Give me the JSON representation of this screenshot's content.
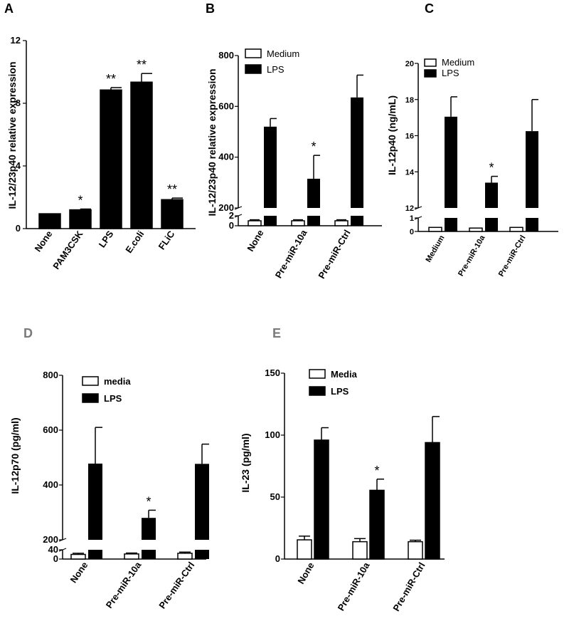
{
  "chart_data": [
    {
      "panel": "A",
      "type": "bar",
      "ylabel": "IL-12/23p40 relative expression",
      "categories": [
        "None",
        "PAM3CSK",
        "LPS",
        "E.coli",
        "FLiC"
      ],
      "series": [
        {
          "values": [
            0.95,
            1.2,
            8.85,
            9.35,
            1.85
          ],
          "errors": [
            0.03,
            0.05,
            0.15,
            0.55,
            0.1
          ],
          "color": "#000000"
        }
      ],
      "annotations": [
        "",
        "*",
        "**",
        "**",
        "**"
      ],
      "ylim": [
        0,
        12
      ],
      "yticks": [
        0,
        4,
        8,
        12
      ]
    },
    {
      "panel": "B",
      "type": "bar",
      "ylabel": "IL-12/23p40 relative expression",
      "categories": [
        "None",
        "Pre-miR-10a",
        "Pre-miR-Ctrl"
      ],
      "series": [
        {
          "name": "Medium",
          "values": [
            1,
            1,
            1
          ],
          "errors": [
            0.2,
            0.2,
            0.2
          ],
          "color": "#ffffff"
        },
        {
          "name": "LPS",
          "values": [
            520,
            315,
            635
          ],
          "errors": [
            32,
            92,
            88
          ],
          "color": "#000000"
        }
      ],
      "annotations": [
        "",
        "*",
        ""
      ],
      "yticks": [
        "0",
        "2",
        "200",
        "400",
        "600",
        "800"
      ],
      "axis_break": {
        "lower": [
          0,
          2
        ],
        "upper": [
          200,
          800
        ]
      },
      "legend": "top-left"
    },
    {
      "panel": "C",
      "type": "bar",
      "ylabel": "IL-12p40 (ng/mL)",
      "categories": [
        "Medium",
        "Pre-miR-10a",
        "Pre-miR-Ctrl"
      ],
      "series": [
        {
          "name": "Medium",
          "values": [
            0.3,
            0.25,
            0.3
          ],
          "errors": [
            0.02,
            0.02,
            0.02
          ],
          "color": "#ffffff"
        },
        {
          "name": "LPS",
          "values": [
            17.05,
            13.4,
            16.25
          ],
          "errors": [
            1.1,
            0.35,
            1.75
          ],
          "color": "#000000"
        }
      ],
      "annotations": [
        "",
        "*",
        ""
      ],
      "yticks": [
        "0",
        "1",
        "12",
        "14",
        "16",
        "18",
        "20"
      ],
      "axis_break": {
        "lower": [
          0,
          1
        ],
        "upper": [
          12,
          20
        ]
      },
      "legend": "top-left"
    },
    {
      "panel": "D",
      "type": "bar",
      "ylabel": "IL-12p70 (pg/ml)",
      "categories": [
        "None",
        "Pre-miR-10a",
        "Pre-miR-Ctrl"
      ],
      "series": [
        {
          "name": "media",
          "values": [
            20,
            22,
            25
          ],
          "errors": [
            5,
            4,
            5
          ],
          "color": "#ffffff"
        },
        {
          "name": "LPS",
          "values": [
            478,
            280,
            477
          ],
          "errors": [
            132,
            28,
            72
          ],
          "color": "#000000"
        }
      ],
      "annotations": [
        "",
        "*",
        ""
      ],
      "yticks": [
        "0",
        "40",
        "200",
        "400",
        "600",
        "800"
      ],
      "axis_break": {
        "lower": [
          0,
          40
        ],
        "upper": [
          200,
          800
        ]
      },
      "legend": "top-left"
    },
    {
      "panel": "E",
      "type": "bar",
      "ylabel": "IL-23 (pg/ml)",
      "categories": [
        "None",
        "Pre-miR-10a",
        "Pre-miR-Ctrl"
      ],
      "series": [
        {
          "name": "Media",
          "values": [
            15.5,
            14,
            14
          ],
          "errors": [
            3,
            2.5,
            1.2
          ],
          "color": "#ffffff"
        },
        {
          "name": "LPS",
          "values": [
            96,
            55.5,
            94
          ],
          "errors": [
            10,
            9,
            21
          ],
          "color": "#000000"
        }
      ],
      "annotations": [
        "",
        "*",
        ""
      ],
      "ylim": [
        0,
        150
      ],
      "yticks": [
        0,
        50,
        100,
        150
      ],
      "legend": "top-left"
    }
  ]
}
